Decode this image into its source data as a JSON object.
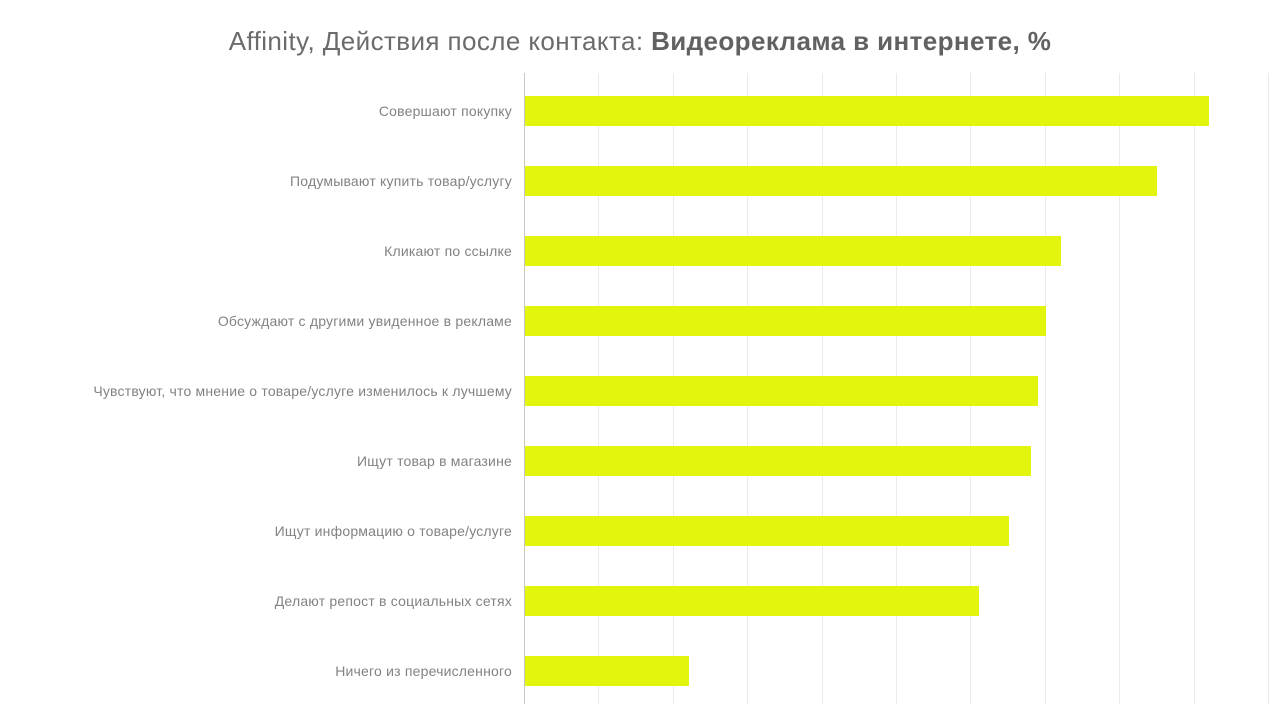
{
  "chart": {
    "title_regular": "Affinity, Действия после контакта: ",
    "title_bold": "Видеореклама в интернете, %"
  },
  "chart_data": {
    "type": "bar",
    "orientation": "horizontal",
    "title": "Affinity, Действия после контакта: Видеореклама в интернете, %",
    "categories": [
      "Совершают покупку",
      "Подумывают купить товар/услугу",
      "Кликают по ссылке",
      "Обсуждают с другими увиденное в рекламе",
      "Чувствуют, что мнение о товаре/услуге изменилось к лучшему",
      "Ищут товар в магазине",
      "Ищут информацию о товаре/услуге",
      "Делают репост в социальных сетях",
      "Ничего из перечисленного"
    ],
    "values": [
      92,
      85,
      72,
      70,
      69,
      68,
      65,
      61,
      22
    ],
    "xlim": [
      0,
      100
    ],
    "x_ticks": [
      0,
      10,
      20,
      30,
      40,
      50,
      60,
      70,
      80,
      90,
      100
    ],
    "x_tick_labels_visible": false,
    "grid": true,
    "legend": false,
    "bar_color": "#e3f50c",
    "label_color": "#828282",
    "grid_color": "#eaeaea",
    "axis_color": "#c6c6c6"
  }
}
